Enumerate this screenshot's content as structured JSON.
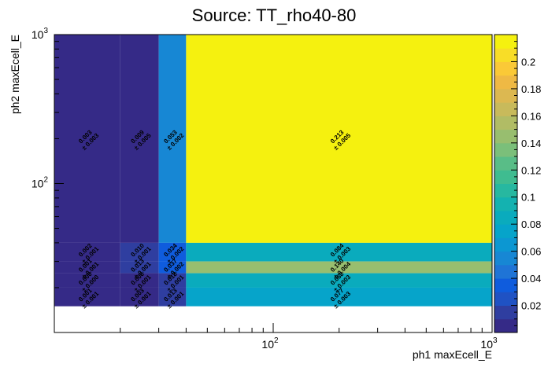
{
  "chart_data": {
    "type": "heatmap",
    "title": "Source: TT_rho40-80",
    "xlabel": "ph1 maxEcell_E",
    "ylabel": "ph2 maxEcell_E",
    "x_scale": "log",
    "y_scale": "log",
    "xlim": [
      10,
      1000
    ],
    "ylim": [
      10,
      1000
    ],
    "x_tick_labels": [
      {
        "value": 100,
        "base": "10",
        "exp": "2"
      },
      {
        "value": 1000,
        "base": "10",
        "exp": "3"
      }
    ],
    "y_tick_labels": [
      {
        "value": 100,
        "base": "10",
        "exp": "2"
      },
      {
        "value": 1000,
        "base": "10",
        "exp": "3"
      }
    ],
    "x_edges": [
      10,
      20,
      30,
      40,
      1000
    ],
    "y_edges": [
      10,
      15,
      20,
      25,
      30,
      40,
      1000
    ],
    "z_ticks": [
      "0.02",
      "0.04",
      "0.06",
      "0.08",
      "0.1",
      "0.12",
      "0.14",
      "0.16",
      "0.18",
      "0.2"
    ],
    "zlim": [
      0,
      0.22
    ],
    "palette": [
      "#352a87",
      "#2f3ea0",
      "#1f52c4",
      "#0f5cdd",
      "#1f74d6",
      "#1787d4",
      "#0c97d2",
      "#06a4ca",
      "#0aabbd",
      "#14b2b0",
      "#27b8a0",
      "#3fbc90",
      "#59bd87",
      "#7bbf7a",
      "#98be6f",
      "#b1bc65",
      "#c8ba5b",
      "#dcb851",
      "#efb944",
      "#fac937",
      "#f8dd27",
      "#f5f10f"
    ],
    "cells": [
      {
        "xi": 0,
        "yi": 5,
        "value": 0.003,
        "label": "0.003",
        "error": "± 0.003"
      },
      {
        "xi": 1,
        "yi": 5,
        "value": 0.009,
        "label": "0.009",
        "error": "± 0.005"
      },
      {
        "xi": 2,
        "yi": 5,
        "value": 0.053,
        "label": "0.053",
        "error": "± 0.002"
      },
      {
        "xi": 3,
        "yi": 5,
        "value": 0.213,
        "label": "0.213",
        "error": "± 0.005"
      },
      {
        "xi": 0,
        "yi": 4,
        "value": 0.002,
        "label": "0.002",
        "error": "± 0.001"
      },
      {
        "xi": 1,
        "yi": 4,
        "value": 0.01,
        "label": "0.010",
        "error": "± 0.001"
      },
      {
        "xi": 2,
        "yi": 4,
        "value": 0.034,
        "label": "0.034",
        "error": "± 0.002"
      },
      {
        "xi": 3,
        "yi": 4,
        "value": 0.084,
        "label": "0.084",
        "error": "± 0.003"
      },
      {
        "xi": 0,
        "yi": 3,
        "value": 0.001,
        "label": "0.001",
        "error": "± 0.001"
      },
      {
        "xi": 1,
        "yi": 3,
        "value": 0.013,
        "label": "0.013",
        "error": "± 0.001"
      },
      {
        "xi": 2,
        "yi": 3,
        "value": 0.037,
        "label": "0.037",
        "error": "± 0.002"
      },
      {
        "xi": 3,
        "yi": 3,
        "value": 0.14,
        "label": "0.140",
        "error": "± 0.004"
      },
      {
        "xi": 0,
        "yi": 2,
        "value": 0.0,
        "label": "0.000",
        "error": "± 0.000"
      },
      {
        "xi": 1,
        "yi": 2,
        "value": 0.006,
        "label": "0.006",
        "error": "± 0.001"
      },
      {
        "xi": 2,
        "yi": 2,
        "value": 0.018,
        "label": "0.018",
        "error": "± 0.001"
      },
      {
        "xi": 3,
        "yi": 2,
        "value": 0.088,
        "label": "0.088",
        "error": "± 0.003"
      },
      {
        "xi": 0,
        "yi": 1,
        "value": 0.001,
        "label": "0.001",
        "error": "± 0.001"
      },
      {
        "xi": 1,
        "yi": 1,
        "value": 0.003,
        "label": "0.003",
        "error": "± 0.001"
      },
      {
        "xi": 2,
        "yi": 1,
        "value": 0.013,
        "label": "0.013",
        "error": "± 0.001"
      },
      {
        "xi": 3,
        "yi": 1,
        "value": 0.077,
        "label": "0.077",
        "error": "± 0.003"
      }
    ],
    "grid": false,
    "legend": "color bar right"
  }
}
